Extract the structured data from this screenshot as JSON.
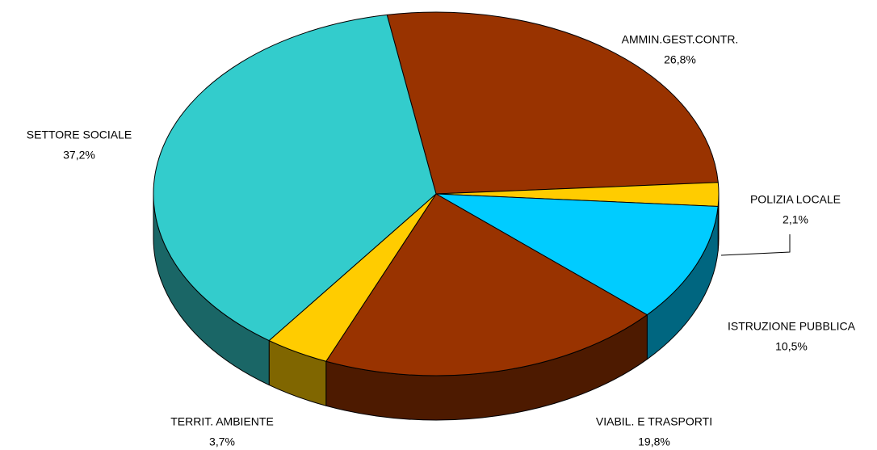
{
  "chart_data": {
    "type": "pie3d",
    "categories": [
      "AMMIN.GEST.CONTR.",
      "POLIZIA LOCALE",
      "ISTRUZIONE PUBBLICA",
      "VIABIL. E TRASPORTI",
      "TERRIT. AMBIENTE",
      "SETTORE SOCIALE"
    ],
    "values": [
      26.8,
      2.1,
      10.5,
      19.8,
      3.7,
      37.2
    ],
    "value_labels": [
      "26,8%",
      "2,1%",
      "10,5%",
      "19,8%",
      "3,7%",
      "37,2%"
    ],
    "colors": [
      "#993300",
      "#ffcc00",
      "#00ccff",
      "#993300",
      "#ffcc00",
      "#33cccc"
    ]
  }
}
